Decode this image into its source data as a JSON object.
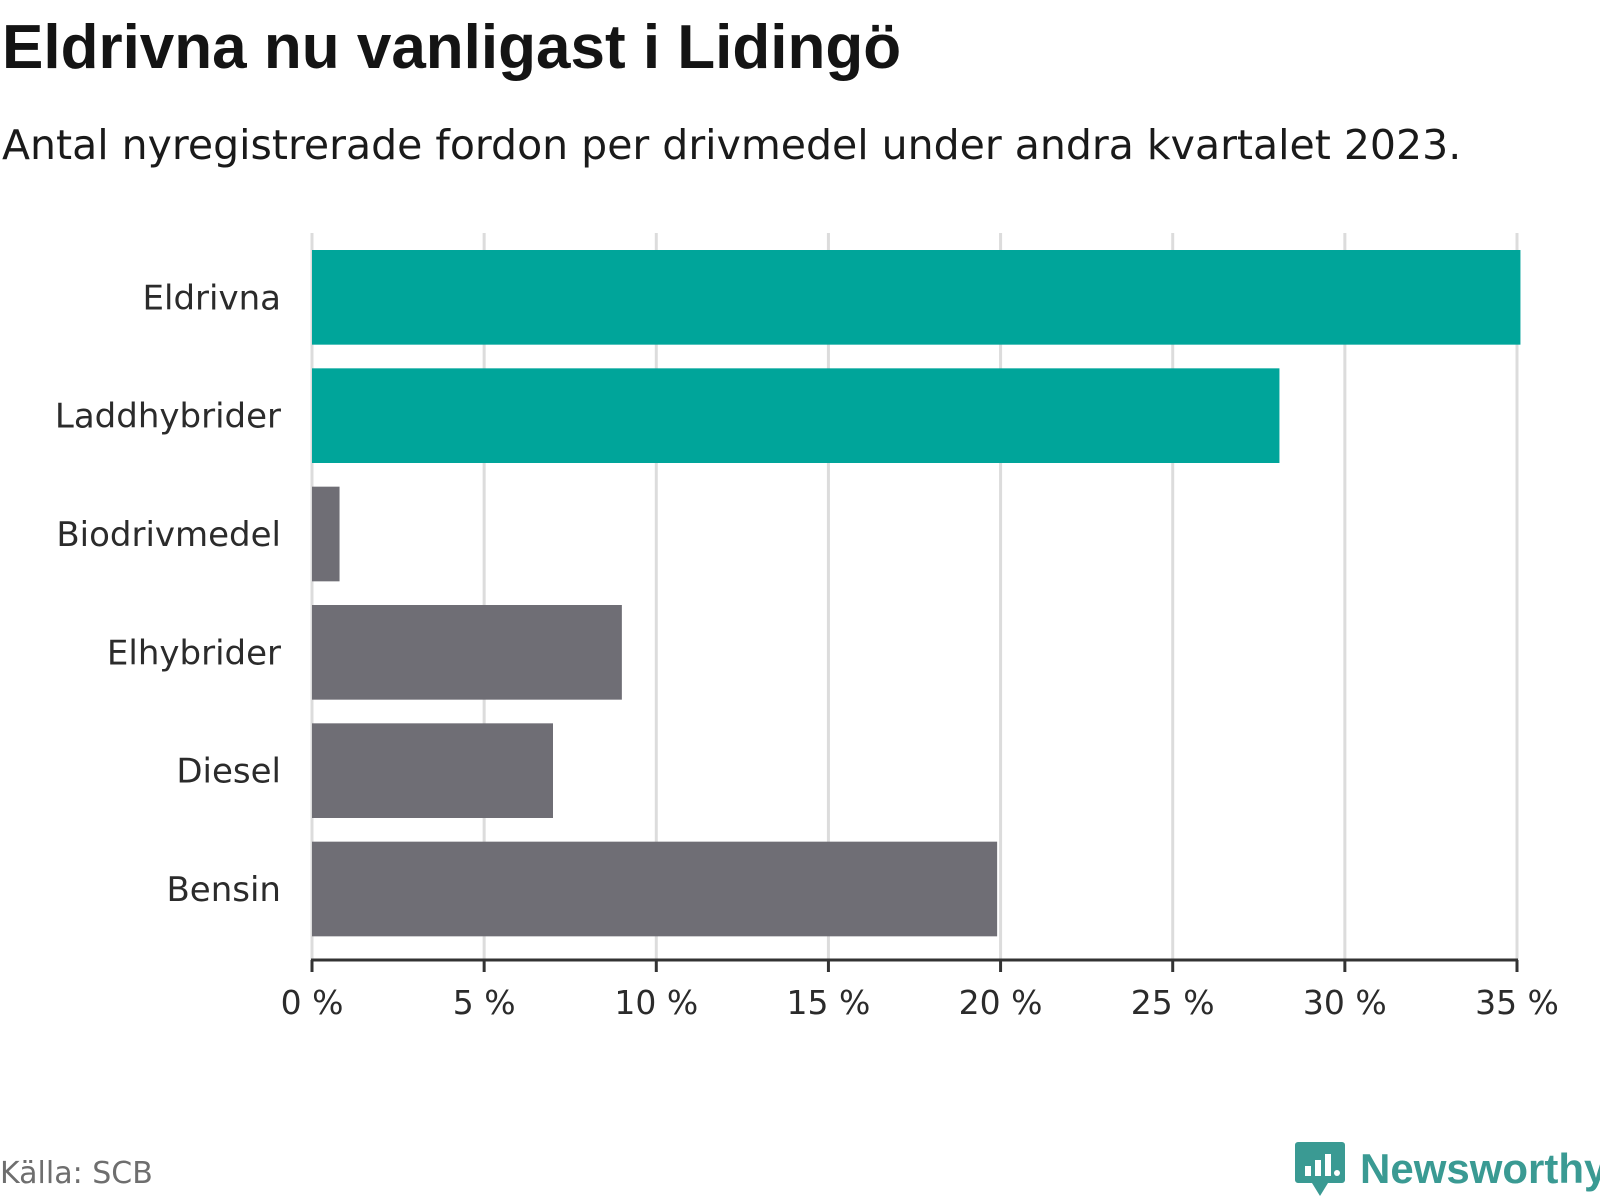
{
  "header": {
    "title": "Eldrivna nu vanligast i Lidingö",
    "subtitle": "Antal nyregistrerade fordon per drivmedel under andra kvartalet 2023."
  },
  "footer": {
    "source": "Källa: SCB",
    "brand": "Newsworthy"
  },
  "colors": {
    "highlight": "#00a59a",
    "neutral": "#6f6e75",
    "grid": "#dcdcdc",
    "axis": "#333333"
  },
  "chart_data": {
    "type": "bar",
    "orientation": "horizontal",
    "title": "Eldrivna nu vanligast i Lidingö",
    "subtitle": "Antal nyregistrerade fordon per drivmedel under andra kvartalet 2023.",
    "xlabel": "",
    "ylabel": "",
    "categories": [
      "Eldrivna",
      "Laddhybrider",
      "Biodrivmedel",
      "Elhybrider",
      "Diesel",
      "Bensin"
    ],
    "values": [
      35.1,
      28.1,
      0.8,
      9.0,
      7.0,
      19.9
    ],
    "highlighted": [
      true,
      true,
      false,
      false,
      false,
      false
    ],
    "xlim": [
      0,
      35
    ],
    "ticks": [
      0,
      5,
      10,
      15,
      20,
      25,
      30,
      35
    ],
    "tick_labels": [
      "0 %",
      "5 %",
      "10 %",
      "15 %",
      "20 %",
      "25 %",
      "30 %",
      "35 %"
    ],
    "grid": true,
    "unit": "%"
  }
}
